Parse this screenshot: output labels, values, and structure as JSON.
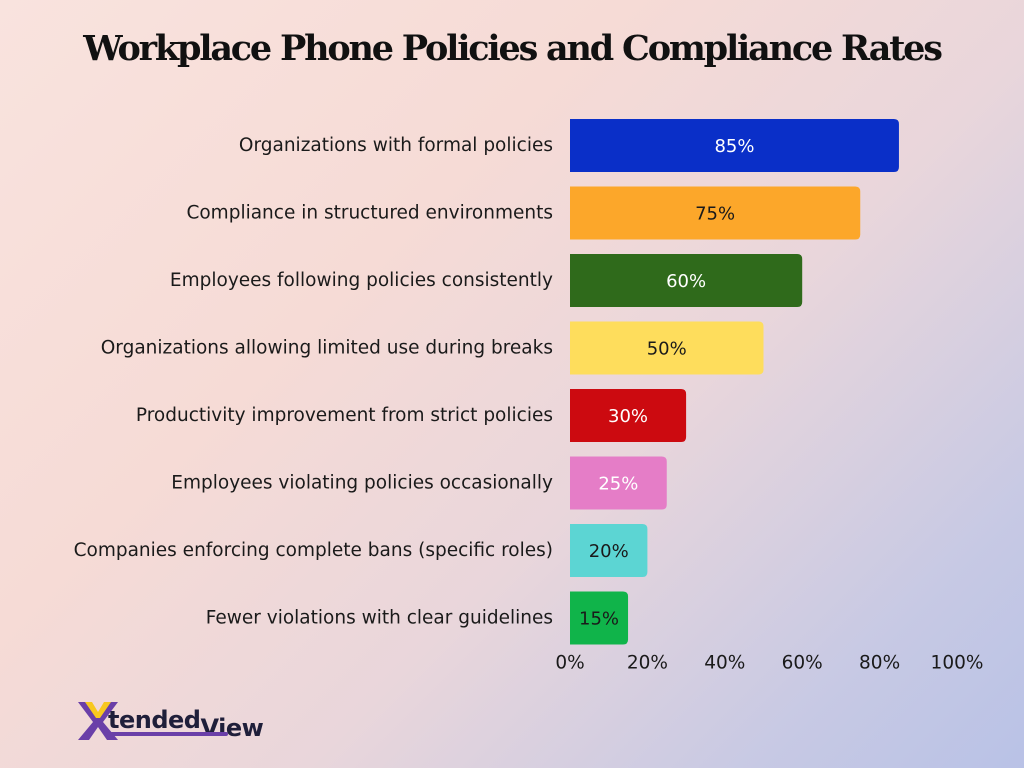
{
  "chart_data": {
    "type": "bar",
    "orientation": "horizontal",
    "title": "Workplace Phone Policies and Compliance Rates",
    "categories": [
      "Organizations with formal policies",
      "Compliance in structured environments",
      "Employees following policies consistently",
      "Organizations allowing limited use during breaks",
      "Productivity improvement from strict policies",
      "Employees violating policies occasionally",
      "Companies enforcing complete bans (specific roles)",
      "Fewer violations with clear guidelines"
    ],
    "values": [
      85,
      75,
      60,
      50,
      30,
      25,
      20,
      15
    ],
    "value_labels": [
      "85%",
      "75%",
      "60%",
      "50%",
      "30%",
      "25%",
      "20%",
      "15%"
    ],
    "colors": [
      "#0a2fc8",
      "#fca72a",
      "#2f6a1b",
      "#fedd5c",
      "#cc0a10",
      "#e57dc7",
      "#5cd5d3",
      "#10b44a"
    ],
    "label_colors": [
      "#ffffff",
      "#1a1a1a",
      "#ffffff",
      "#1a1a1a",
      "#ffffff",
      "#ffffff",
      "#1a1a1a",
      "#1a1a1a"
    ],
    "xlim": [
      0,
      100
    ],
    "xticks": [
      0,
      20,
      40,
      60,
      80,
      100
    ],
    "xtick_labels": [
      "0%",
      "20%",
      "40%",
      "60%",
      "80%",
      "100%"
    ],
    "grid": false,
    "legend": false
  },
  "branding": {
    "logo_text_1": "tended",
    "logo_text_2": "View"
  }
}
